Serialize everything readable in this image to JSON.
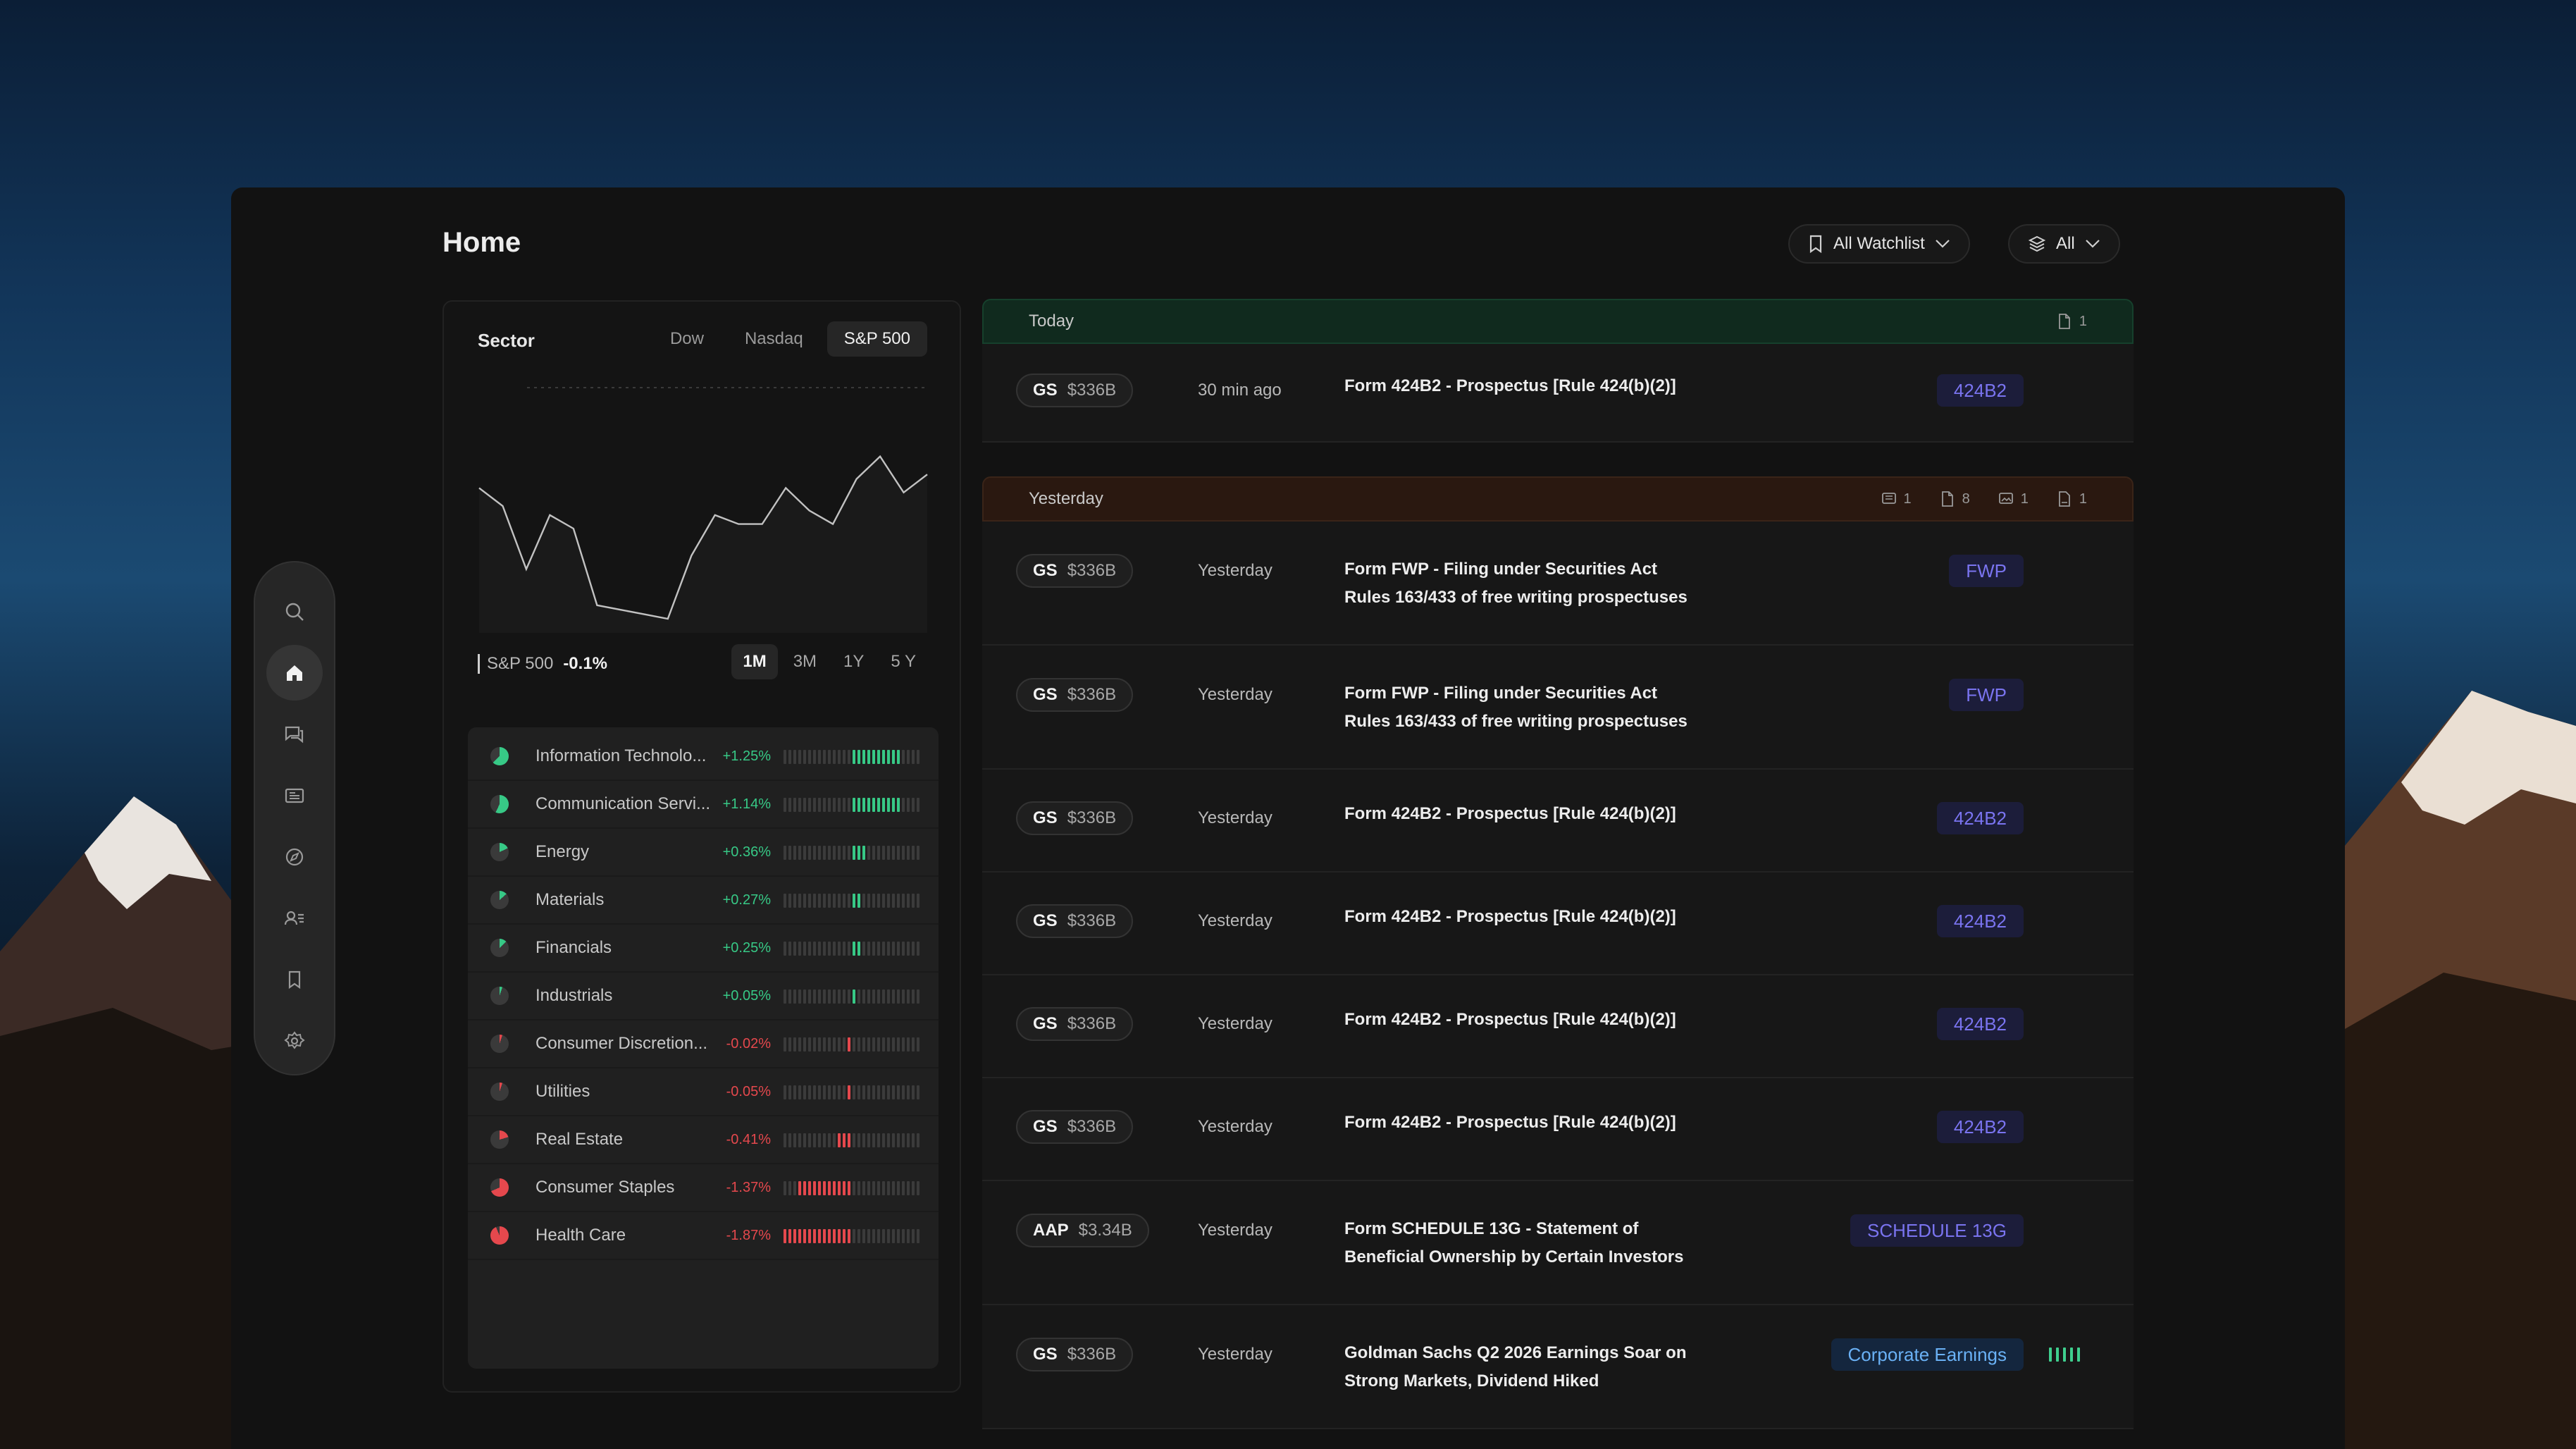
{
  "page": {
    "title": "Home"
  },
  "top_controls": {
    "watchlist": {
      "label": "All Watchlist",
      "icon": "bookmark-icon"
    },
    "filter": {
      "label": "All",
      "icon": "layers-icon"
    }
  },
  "rail": {
    "items": [
      {
        "name": "search",
        "icon": "search-icon",
        "active": false
      },
      {
        "name": "home",
        "icon": "home-icon",
        "active": true
      },
      {
        "name": "chat",
        "icon": "chat-icon",
        "active": false
      },
      {
        "name": "news",
        "icon": "newspaper-icon",
        "active": false
      },
      {
        "name": "explore",
        "icon": "compass-icon",
        "active": false
      },
      {
        "name": "people",
        "icon": "contacts-icon",
        "active": false
      },
      {
        "name": "bookmarks",
        "icon": "bookmark-icon",
        "active": false
      },
      {
        "name": "settings",
        "icon": "gear-icon",
        "active": false
      }
    ]
  },
  "sector_panel": {
    "title": "Sector",
    "tabs": [
      "Dow",
      "Nasdaq",
      "S&P 500"
    ],
    "active_tab": 2,
    "index_name": "S&P 500",
    "index_change": "-0.1%",
    "ranges": [
      "1M",
      "3M",
      "1Y",
      "5 Y"
    ],
    "active_range": 0,
    "colors": {
      "positive": "#37c986",
      "negative": "#e5484d"
    },
    "sectors": [
      {
        "name": "Information Technolo...",
        "change": "+1.25%",
        "value": 1.25
      },
      {
        "name": "Communication Servi...",
        "change": "+1.14%",
        "value": 1.14
      },
      {
        "name": "Energy",
        "change": "+0.36%",
        "value": 0.36
      },
      {
        "name": "Materials",
        "change": "+0.27%",
        "value": 0.27
      },
      {
        "name": "Financials",
        "change": "+0.25%",
        "value": 0.25
      },
      {
        "name": "Industrials",
        "change": "+0.05%",
        "value": 0.05
      },
      {
        "name": "Consumer Discretion...",
        "change": "-0.02%",
        "value": -0.02
      },
      {
        "name": "Utilities",
        "change": "-0.05%",
        "value": -0.05
      },
      {
        "name": "Real Estate",
        "change": "-0.41%",
        "value": -0.41
      },
      {
        "name": "Consumer Staples",
        "change": "-1.37%",
        "value": -1.37
      },
      {
        "name": "Health Care",
        "change": "-1.87%",
        "value": -1.87
      }
    ]
  },
  "chart_data": {
    "type": "line",
    "title": "",
    "series": [
      {
        "values": [
          58,
          50,
          22,
          46,
          40,
          6,
          4,
          2,
          0,
          28,
          46,
          42,
          42,
          58,
          48,
          42,
          62,
          72,
          56,
          64
        ]
      }
    ],
    "ylim": [
      0,
      100
    ],
    "grid": false
  },
  "feed": {
    "groups": [
      {
        "label": "Today",
        "tone": "green",
        "counts": [
          {
            "icon": "document-icon",
            "value": "1"
          }
        ],
        "items": [
          {
            "ticker": "GS",
            "mcap": "$336B",
            "time": "30 min ago",
            "title": [
              "Form 424B2 - Prospectus [Rule 424(b)(2)]"
            ],
            "badge": "424B2",
            "badge_style": "purple"
          }
        ]
      },
      {
        "label": "Yesterday",
        "tone": "brown",
        "counts": [
          {
            "icon": "newspaper-icon",
            "value": "1"
          },
          {
            "icon": "document-icon",
            "value": "8"
          },
          {
            "icon": "image-icon",
            "value": "1"
          },
          {
            "icon": "ppt-icon",
            "value": "1"
          }
        ],
        "items": [
          {
            "ticker": "GS",
            "mcap": "$336B",
            "time": "Yesterday",
            "title": [
              "Form FWP - Filing under Securities Act",
              "Rules 163/433 of free writing prospectuses"
            ],
            "badge": "FWP",
            "badge_style": "purple"
          },
          {
            "ticker": "GS",
            "mcap": "$336B",
            "time": "Yesterday",
            "title": [
              "Form FWP - Filing under Securities Act",
              "Rules 163/433 of free writing prospectuses"
            ],
            "badge": "FWP",
            "badge_style": "purple"
          },
          {
            "ticker": "GS",
            "mcap": "$336B",
            "time": "Yesterday",
            "title": [
              "Form 424B2 - Prospectus [Rule 424(b)(2)]"
            ],
            "badge": "424B2",
            "badge_style": "purple"
          },
          {
            "ticker": "GS",
            "mcap": "$336B",
            "time": "Yesterday",
            "title": [
              "Form 424B2 - Prospectus [Rule 424(b)(2)]"
            ],
            "badge": "424B2",
            "badge_style": "purple"
          },
          {
            "ticker": "GS",
            "mcap": "$336B",
            "time": "Yesterday",
            "title": [
              "Form 424B2 - Prospectus [Rule 424(b)(2)]"
            ],
            "badge": "424B2",
            "badge_style": "purple"
          },
          {
            "ticker": "GS",
            "mcap": "$336B",
            "time": "Yesterday",
            "title": [
              "Form 424B2 - Prospectus [Rule 424(b)(2)]"
            ],
            "badge": "424B2",
            "badge_style": "purple"
          },
          {
            "ticker": "AAP",
            "mcap": "$3.34B",
            "time": "Yesterday",
            "title": [
              "Form SCHEDULE 13G - Statement of",
              "Beneficial Ownership by Certain Investors"
            ],
            "badge": "SCHEDULE 13G",
            "badge_style": "purple"
          },
          {
            "ticker": "GS",
            "mcap": "$336B",
            "time": "Yesterday",
            "title": [
              "Goldman Sachs Q2 2026 Earnings Soar on",
              "Strong Markets, Dividend Hiked"
            ],
            "badge": "Corporate Earnings",
            "badge_style": "blue",
            "sentiment": 0.5
          }
        ]
      }
    ]
  }
}
